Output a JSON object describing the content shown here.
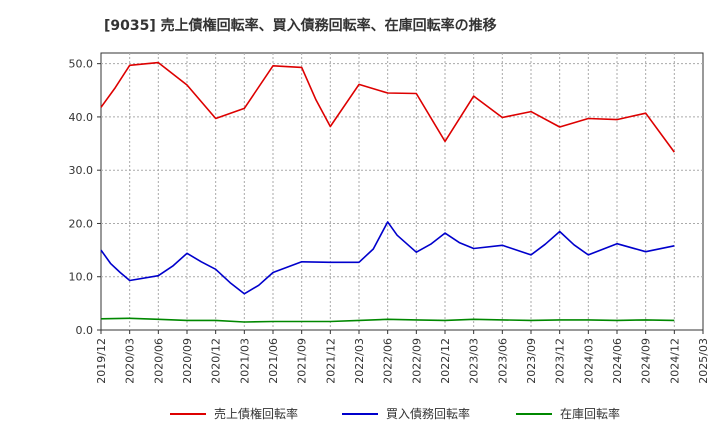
{
  "chart_data": {
    "type": "line",
    "title": "[9035]  売上債権回転率、買入債務回転率、在庫回転率の推移",
    "xlabel": "",
    "ylabel": "",
    "ylim": [
      0,
      52
    ],
    "yticks": [
      0,
      10,
      20,
      30,
      40,
      50
    ],
    "ytick_labels": [
      "0.0",
      "10.0",
      "20.0",
      "30.0",
      "40.0",
      "50.0"
    ],
    "xtick_labels": [
      "2019/12",
      "2020/03",
      "2020/06",
      "2020/09",
      "2020/12",
      "2021/03",
      "2021/06",
      "2021/09",
      "2021/12",
      "2022/03",
      "2022/06",
      "2022/09",
      "2022/12",
      "2023/03",
      "2023/06",
      "2023/09",
      "2023/12",
      "2024/03",
      "2024/06",
      "2024/09",
      "2024/12",
      "2025/03"
    ],
    "grid": true,
    "legend_position": "bottom",
    "series": [
      {
        "name": "売上債権回転率",
        "color": "#dd0000",
        "points": [
          [
            0,
            41.8
          ],
          [
            0.5,
            45.5
          ],
          [
            1,
            49.7
          ],
          [
            2,
            50.2
          ],
          [
            3,
            46.0
          ],
          [
            4,
            39.7
          ],
          [
            5,
            41.6
          ],
          [
            6,
            49.6
          ],
          [
            7,
            49.3
          ],
          [
            7.5,
            43.2
          ],
          [
            8,
            38.2
          ],
          [
            9,
            46.1
          ],
          [
            10,
            44.5
          ],
          [
            11,
            44.4
          ],
          [
            12,
            35.4
          ],
          [
            13,
            43.9
          ],
          [
            14,
            39.9
          ],
          [
            15,
            41.0
          ],
          [
            16,
            38.1
          ],
          [
            17,
            39.7
          ],
          [
            18,
            39.5
          ],
          [
            19,
            40.7
          ],
          [
            20,
            33.4
          ]
        ]
      },
      {
        "name": "買入債務回転率",
        "color": "#0000cc",
        "points": [
          [
            0,
            15.0
          ],
          [
            0.33,
            12.5
          ],
          [
            0.67,
            10.8
          ],
          [
            1,
            9.3
          ],
          [
            2,
            10.2
          ],
          [
            2.5,
            12.0
          ],
          [
            3,
            14.4
          ],
          [
            3.5,
            12.8
          ],
          [
            4,
            11.4
          ],
          [
            4.5,
            8.9
          ],
          [
            5,
            6.8
          ],
          [
            5.5,
            8.4
          ],
          [
            6,
            10.8
          ],
          [
            7,
            12.8
          ],
          [
            8,
            12.7
          ],
          [
            9,
            12.7
          ],
          [
            9.5,
            15.2
          ],
          [
            10,
            20.3
          ],
          [
            10.33,
            17.8
          ],
          [
            11,
            14.6
          ],
          [
            11.5,
            16.1
          ],
          [
            12,
            18.2
          ],
          [
            12.5,
            16.4
          ],
          [
            13,
            15.3
          ],
          [
            14,
            15.9
          ],
          [
            15,
            14.1
          ],
          [
            15.5,
            16.1
          ],
          [
            16,
            18.5
          ],
          [
            16.5,
            16.0
          ],
          [
            17,
            14.1
          ],
          [
            18,
            16.2
          ],
          [
            19,
            14.7
          ],
          [
            20,
            15.8
          ]
        ]
      },
      {
        "name": "在庫回転率",
        "color": "#008800",
        "points": [
          [
            0,
            2.1
          ],
          [
            1,
            2.2
          ],
          [
            2,
            2.0
          ],
          [
            3,
            1.8
          ],
          [
            4,
            1.8
          ],
          [
            5,
            1.5
          ],
          [
            6,
            1.6
          ],
          [
            7,
            1.6
          ],
          [
            8,
            1.6
          ],
          [
            9,
            1.8
          ],
          [
            10,
            2.0
          ],
          [
            11,
            1.9
          ],
          [
            12,
            1.8
          ],
          [
            13,
            2.0
          ],
          [
            14,
            1.9
          ],
          [
            15,
            1.8
          ],
          [
            16,
            1.9
          ],
          [
            17,
            1.9
          ],
          [
            18,
            1.8
          ],
          [
            19,
            1.9
          ],
          [
            20,
            1.8
          ]
        ]
      }
    ]
  }
}
